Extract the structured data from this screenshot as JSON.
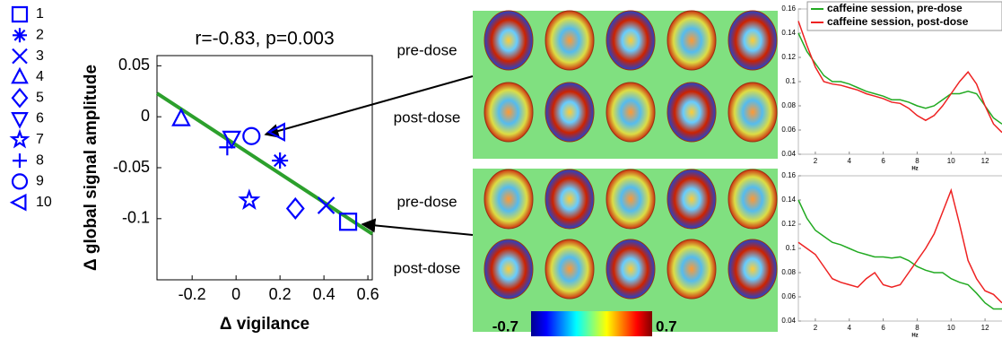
{
  "chart_data": [
    {
      "type": "scatter",
      "title": "r=-0.83, p=0.003",
      "xlabel": "Δ vigilance",
      "ylabel": "Δ global signal amplitude",
      "xlim": [
        -0.36,
        0.62
      ],
      "ylim": [
        -0.16,
        0.06
      ],
      "xticks": [
        -0.2,
        0,
        0.2,
        0.4,
        0.6
      ],
      "yticks": [
        0.05,
        0,
        -0.05,
        -0.1
      ],
      "fit_line": {
        "color": "#2ca02c",
        "x": [
          -0.36,
          0.62
        ],
        "y": [
          0.023,
          -0.115
        ]
      },
      "series": [
        {
          "name": "1",
          "marker": "square",
          "color": "#0000ff",
          "x": [
            0.51
          ],
          "values": [
            -0.103
          ]
        },
        {
          "name": "2",
          "marker": "asterisk",
          "color": "#0000ff",
          "x": [
            0.2
          ],
          "values": [
            -0.043
          ]
        },
        {
          "name": "3",
          "marker": "x",
          "color": "#0000ff",
          "x": [
            0.41
          ],
          "values": [
            -0.087
          ]
        },
        {
          "name": "4",
          "marker": "triangle-up",
          "color": "#0000ff",
          "x": [
            -0.25
          ],
          "values": [
            -0.002
          ]
        },
        {
          "name": "5",
          "marker": "diamond",
          "color": "#0000ff",
          "x": [
            0.27
          ],
          "values": [
            -0.09
          ]
        },
        {
          "name": "6",
          "marker": "triangle-down",
          "color": "#0000ff",
          "x": [
            -0.02
          ],
          "values": [
            -0.021
          ]
        },
        {
          "name": "7",
          "marker": "star",
          "color": "#0000ff",
          "x": [
            0.06
          ],
          "values": [
            -0.082
          ]
        },
        {
          "name": "8",
          "marker": "plus",
          "color": "#0000ff",
          "x": [
            -0.04
          ],
          "values": [
            -0.03
          ]
        },
        {
          "name": "9",
          "marker": "circle",
          "color": "#0000ff",
          "x": [
            0.07
          ],
          "values": [
            -0.019
          ]
        },
        {
          "name": "10",
          "marker": "triangle-left",
          "color": "#0000ff",
          "x": [
            0.19
          ],
          "values": [
            -0.015
          ]
        }
      ]
    },
    {
      "type": "line",
      "xlabel": "Hz",
      "xlim": [
        1,
        13
      ],
      "ylim": [
        0.04,
        0.16
      ],
      "xticks": [
        2,
        4,
        6,
        8,
        10,
        12
      ],
      "yticks": [
        0.04,
        0.06,
        0.08,
        0.1,
        0.12,
        0.14,
        0.16
      ],
      "x": [
        1,
        1.5,
        2,
        2.5,
        3,
        3.5,
        4,
        4.5,
        5,
        5.5,
        6,
        6.5,
        7,
        7.5,
        8,
        8.5,
        9,
        9.5,
        10,
        10.5,
        11,
        11.5,
        12,
        12.5,
        13
      ],
      "series": [
        {
          "name": "caffeine session, pre-dose",
          "color": "#22aa22",
          "values": [
            0.14,
            0.125,
            0.115,
            0.105,
            0.1,
            0.1,
            0.098,
            0.095,
            0.092,
            0.09,
            0.088,
            0.085,
            0.085,
            0.083,
            0.08,
            0.078,
            0.08,
            0.085,
            0.09,
            0.09,
            0.092,
            0.09,
            0.08,
            0.07,
            0.065
          ]
        },
        {
          "name": "caffeine session, post-dose",
          "color": "#ee2222",
          "values": [
            0.15,
            0.13,
            0.112,
            0.1,
            0.098,
            0.097,
            0.095,
            0.093,
            0.09,
            0.088,
            0.086,
            0.083,
            0.082,
            0.078,
            0.072,
            0.068,
            0.072,
            0.08,
            0.09,
            0.1,
            0.108,
            0.098,
            0.08,
            0.065,
            0.058
          ]
        }
      ]
    },
    {
      "type": "line",
      "xlabel": "Hz",
      "xlim": [
        1,
        13
      ],
      "ylim": [
        0.04,
        0.16
      ],
      "xticks": [
        2,
        4,
        6,
        8,
        10,
        12
      ],
      "yticks": [
        0.04,
        0.06,
        0.08,
        0.1,
        0.12,
        0.14,
        0.16
      ],
      "x": [
        1,
        1.5,
        2,
        2.5,
        3,
        3.5,
        4,
        4.5,
        5,
        5.5,
        6,
        6.5,
        7,
        7.5,
        8,
        8.5,
        9,
        9.5,
        10,
        10.5,
        11,
        11.5,
        12,
        12.5,
        13
      ],
      "series": [
        {
          "color": "#22aa22",
          "values": [
            0.14,
            0.125,
            0.115,
            0.11,
            0.105,
            0.103,
            0.1,
            0.097,
            0.095,
            0.093,
            0.093,
            0.092,
            0.093,
            0.09,
            0.085,
            0.082,
            0.08,
            0.08,
            0.075,
            0.072,
            0.07,
            0.063,
            0.055,
            0.05,
            0.05
          ]
        },
        {
          "color": "#ee2222",
          "values": [
            0.105,
            0.1,
            0.095,
            0.085,
            0.075,
            0.072,
            0.07,
            0.068,
            0.075,
            0.08,
            0.07,
            0.068,
            0.07,
            0.08,
            0.09,
            0.1,
            0.112,
            0.13,
            0.148,
            0.12,
            0.09,
            0.075,
            0.065,
            0.062,
            0.055
          ]
        }
      ]
    }
  ],
  "brain_maps": {
    "row_labels": [
      "pre-dose",
      "post-dose",
      "pre-dose",
      "post-dose"
    ],
    "colorbar": {
      "min": -0.7,
      "max": 0.7
    }
  }
}
